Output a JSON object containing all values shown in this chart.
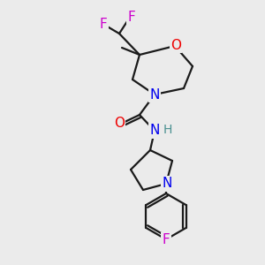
{
  "bg_color": "#ebebeb",
  "atom_colors": {
    "C": "#000000",
    "N": "#0000ee",
    "O": "#ee0000",
    "F": "#cc00cc",
    "H": "#4a9090"
  },
  "bond_color": "#1a1a1a",
  "bond_width": 1.6,
  "fig_size": [
    3.0,
    3.0
  ],
  "dpi": 100
}
